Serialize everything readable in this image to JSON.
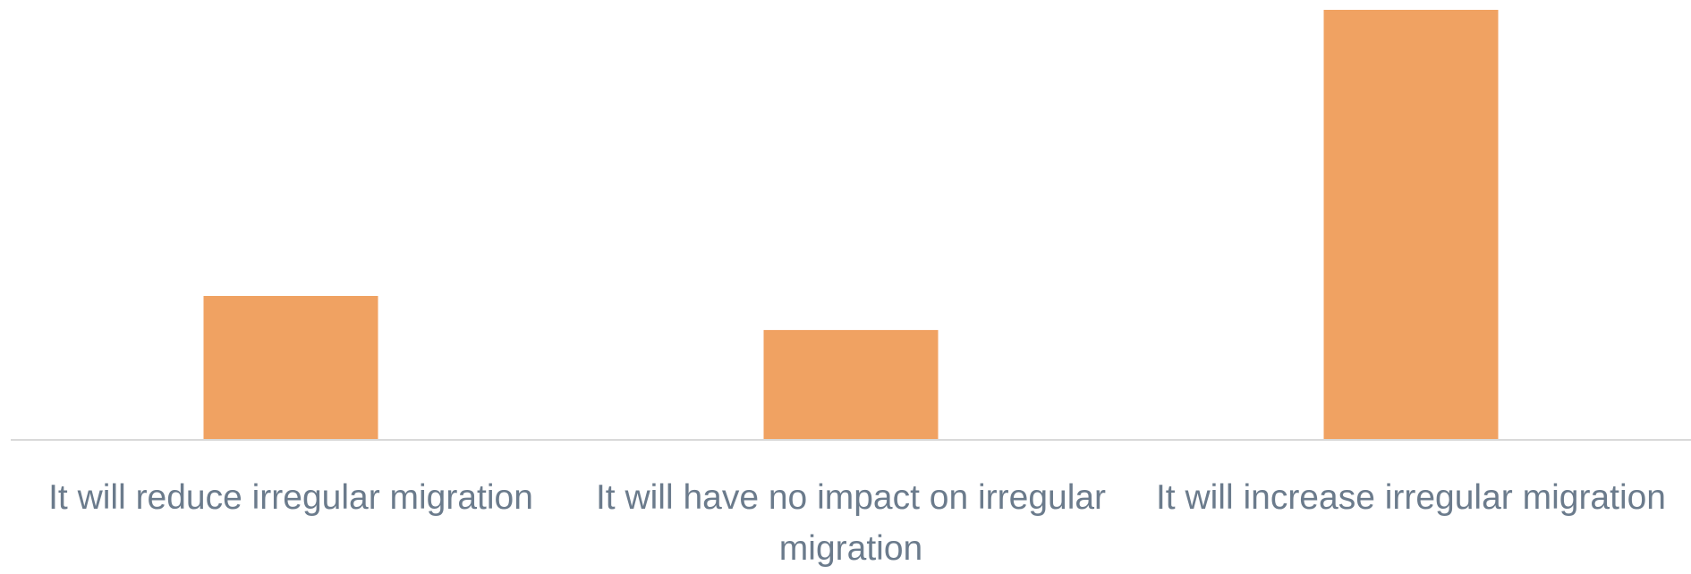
{
  "chart_data": {
    "type": "bar",
    "categories": [
      "It will reduce irregular migration",
      "It will have no impact on irregular migration",
      "It will increase irregular migration"
    ],
    "values": [
      21,
      16,
      63
    ],
    "color": "#f0a262"
  }
}
